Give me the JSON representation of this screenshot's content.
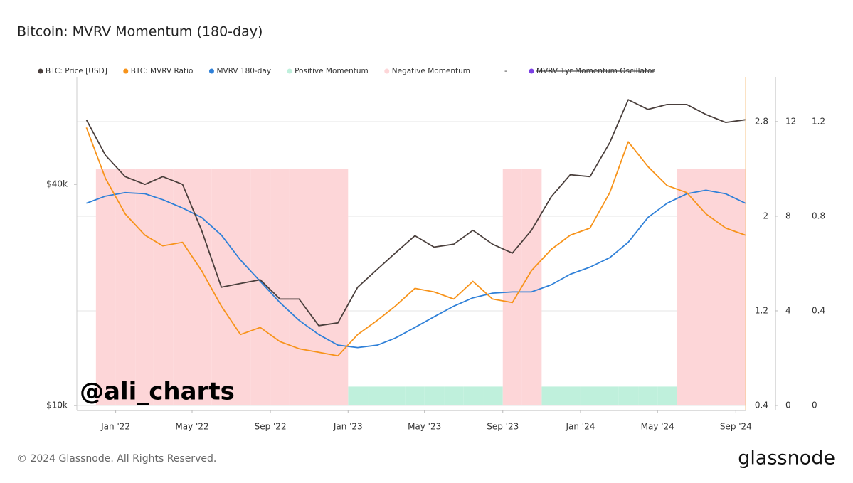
{
  "chart_data": {
    "type": "line",
    "title": "Bitcoin: MVRV Momentum (180-day)",
    "x": [
      "2021-11",
      "2021-12",
      "2022-01",
      "2022-02",
      "2022-03",
      "2022-04",
      "2022-05",
      "2022-06",
      "2022-07",
      "2022-08",
      "2022-09",
      "2022-10",
      "2022-11",
      "2022-12",
      "2023-01",
      "2023-02",
      "2023-03",
      "2023-04",
      "2023-05",
      "2023-06",
      "2023-07",
      "2023-08",
      "2023-09",
      "2023-10",
      "2023-11",
      "2023-12",
      "2024-01",
      "2024-02",
      "2024-03",
      "2024-04",
      "2024-05",
      "2024-06",
      "2024-07",
      "2024-08",
      "2024-09"
    ],
    "xticks": [
      {
        "value": "2022-01",
        "label": "Jan '22"
      },
      {
        "value": "2022-05",
        "label": "May '22"
      },
      {
        "value": "2022-09",
        "label": "Sep '22"
      },
      {
        "value": "2023-01",
        "label": "Jan '23"
      },
      {
        "value": "2023-05",
        "label": "May '23"
      },
      {
        "value": "2023-09",
        "label": "Sep '23"
      },
      {
        "value": "2024-01",
        "label": "Jan '24"
      },
      {
        "value": "2024-05",
        "label": "May '24"
      },
      {
        "value": "2024-09",
        "label": "Sep '24"
      }
    ],
    "log_y": true,
    "ylim": [
      9700,
      78500
    ],
    "yticks": [
      {
        "value": 10000,
        "label": "$10k"
      },
      {
        "value": 40000,
        "label": "$40k"
      }
    ],
    "y2lim": [
      0.358,
      3.179
    ],
    "y2ticks": [
      0.4,
      1.2,
      2,
      2.8
    ],
    "y3lim": [
      -0.21,
      13.89
    ],
    "y3ticks": [
      0,
      4,
      8,
      12
    ],
    "y4lim": [
      -0.021,
      1.389
    ],
    "y4ticks": [
      0,
      0.4,
      0.8,
      1.2
    ],
    "grid": true,
    "series": [
      {
        "name": "BTC: Price [USD]",
        "color": "#4a3f3c",
        "kind": "line",
        "axis": "y",
        "values": [
          60000,
          48000,
          42000,
          40000,
          42000,
          40000,
          30000,
          21000,
          21500,
          22000,
          19500,
          19500,
          16500,
          16800,
          21000,
          23500,
          26000,
          29000,
          27000,
          27500,
          30000,
          27500,
          26000,
          30000,
          37000,
          42500,
          42000,
          52000,
          68000,
          64000,
          66000,
          66000,
          62000,
          59000,
          60000
        ]
      },
      {
        "name": "BTC: MVRV Ratio",
        "color": "#f7931a",
        "kind": "line",
        "axis": "y2",
        "values": [
          2.75,
          2.32,
          2.02,
          1.84,
          1.75,
          1.78,
          1.54,
          1.24,
          1.0,
          1.06,
          0.94,
          0.88,
          0.85,
          0.82,
          1.0,
          1.12,
          1.24,
          1.39,
          1.36,
          1.3,
          1.45,
          1.3,
          1.27,
          1.54,
          1.72,
          1.84,
          1.9,
          2.2,
          2.63,
          2.42,
          2.26,
          2.2,
          2.02,
          1.9,
          1.84
        ]
      },
      {
        "name": "MVRV 180-day",
        "color": "#2f80d8",
        "kind": "line",
        "axis": "y2",
        "values": [
          2.11,
          2.17,
          2.2,
          2.19,
          2.14,
          2.07,
          1.99,
          1.84,
          1.63,
          1.45,
          1.27,
          1.12,
          1.0,
          0.91,
          0.89,
          0.91,
          0.97,
          1.06,
          1.15,
          1.24,
          1.31,
          1.35,
          1.36,
          1.36,
          1.42,
          1.51,
          1.57,
          1.65,
          1.78,
          1.99,
          2.11,
          2.19,
          2.22,
          2.19,
          2.11
        ]
      },
      {
        "name": "Positive Momentum",
        "color": "#bff0dc",
        "kind": "band",
        "axis": "y4",
        "values": [
          null,
          null,
          null,
          null,
          null,
          null,
          null,
          null,
          null,
          null,
          null,
          null,
          null,
          null,
          0.08,
          0.08,
          0.08,
          0.08,
          0.08,
          0.08,
          0.08,
          0.08,
          null,
          null,
          0.08,
          0.08,
          0.08,
          0.08,
          0.08,
          0.08,
          0.08,
          null,
          null,
          null,
          null
        ]
      },
      {
        "name": "Negative Momentum",
        "color": "#fdd6d8",
        "kind": "band",
        "axis": "y4",
        "values": [
          null,
          1,
          1,
          1,
          1,
          1,
          1,
          1,
          1,
          1,
          1,
          1,
          1,
          1,
          null,
          null,
          null,
          null,
          null,
          null,
          null,
          null,
          1,
          1,
          null,
          null,
          null,
          null,
          null,
          null,
          null,
          1,
          1,
          1,
          1
        ]
      }
    ],
    "legend_separator": "-",
    "hidden_series": [
      {
        "name": "MVRV 1yr Momentum Oscillator",
        "color": "#7b3fe4"
      }
    ],
    "watermark": "@ali_charts",
    "footer": "© 2024 Glassnode. All Rights Reserved.",
    "brand": "glassnode"
  }
}
